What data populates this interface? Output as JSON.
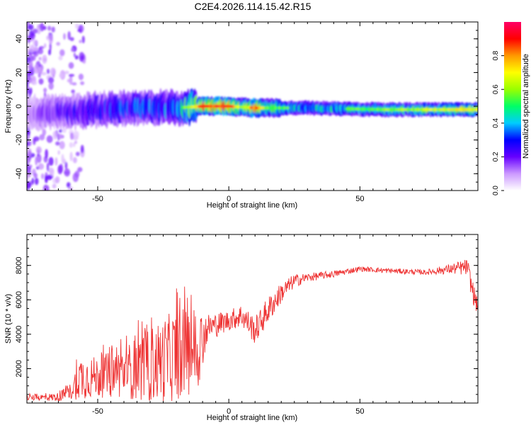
{
  "title": "C2E4.2026.114.15.42.R15",
  "chart_data": [
    {
      "type": "heatmap",
      "xlabel": "Height of straight line (km)",
      "ylabel": "Frequency (Hz)",
      "xlim": [
        -77,
        95
      ],
      "ylim": [
        -50,
        50
      ],
      "xticks": [
        -50,
        0,
        50
      ],
      "yticks": [
        -40,
        -20,
        0,
        20,
        40
      ],
      "grid": false,
      "colorbar": {
        "label": "Normalized spectral amplitude",
        "range": [
          0,
          1
        ],
        "ticks": [
          "0.0",
          "0.2",
          "0.4",
          "0.6",
          "0.8"
        ],
        "colors": [
          "#ffffff",
          "#cc99ff",
          "#6600ff",
          "#0000ff",
          "#00ccff",
          "#00ff66",
          "#99ff00",
          "#ffff00",
          "#ff9900",
          "#ff0000",
          "#ff0066"
        ]
      },
      "ridge": {
        "description_points": [
          {
            "x": -77,
            "y": -4
          },
          {
            "x": -60,
            "y": -3
          },
          {
            "x": -40,
            "y": -1
          },
          {
            "x": -20,
            "y": -1
          },
          {
            "x": -10,
            "y": 0
          },
          {
            "x": 0,
            "y": 0
          },
          {
            "x": 10,
            "y": -1
          },
          {
            "x": 30,
            "y": -1
          },
          {
            "x": 60,
            "y": -2
          },
          {
            "x": 95,
            "y": -2
          }
        ],
        "amplitude": [
          {
            "x": -77,
            "v": 0.15
          },
          {
            "x": -60,
            "v": 0.3
          },
          {
            "x": -40,
            "v": 0.4
          },
          {
            "x": -20,
            "v": 0.45
          },
          {
            "x": -10,
            "v": 0.9
          },
          {
            "x": 0,
            "v": 0.95
          },
          {
            "x": 5,
            "v": 0.6
          },
          {
            "x": 10,
            "v": 0.9
          },
          {
            "x": 15,
            "v": 0.6
          },
          {
            "x": 30,
            "v": 0.5
          },
          {
            "x": 60,
            "v": 0.6
          },
          {
            "x": 95,
            "v": 0.75
          }
        ]
      }
    },
    {
      "type": "line",
      "xlabel": "Height of straight line (km)",
      "ylabel": "SNR (10 * v/v)",
      "xlim": [
        -77,
        95
      ],
      "ylim": [
        0,
        9800
      ],
      "xticks": [
        -50,
        0,
        50
      ],
      "yticks": [
        2000,
        4000,
        6000,
        8000
      ],
      "color": "#ee3333",
      "grid": false,
      "envelope": [
        {
          "x": -77,
          "mean": 300,
          "amp": 150
        },
        {
          "x": -65,
          "mean": 350,
          "amp": 250
        },
        {
          "x": -60,
          "mean": 700,
          "amp": 500
        },
        {
          "x": -57,
          "mean": 1500,
          "amp": 1300
        },
        {
          "x": -50,
          "mean": 1500,
          "amp": 1200
        },
        {
          "x": -40,
          "mean": 1800,
          "amp": 1500
        },
        {
          "x": -30,
          "mean": 2200,
          "amp": 2200
        },
        {
          "x": -20,
          "mean": 2800,
          "amp": 2700
        },
        {
          "x": -12,
          "mean": 3200,
          "amp": 2500
        },
        {
          "x": -8,
          "mean": 4400,
          "amp": 800
        },
        {
          "x": 0,
          "mean": 4800,
          "amp": 600
        },
        {
          "x": 5,
          "mean": 5100,
          "amp": 700
        },
        {
          "x": 10,
          "mean": 4200,
          "amp": 800
        },
        {
          "x": 15,
          "mean": 5400,
          "amp": 800
        },
        {
          "x": 20,
          "mean": 6400,
          "amp": 600
        },
        {
          "x": 25,
          "mean": 7100,
          "amp": 400
        },
        {
          "x": 30,
          "mean": 7300,
          "amp": 250
        },
        {
          "x": 40,
          "mean": 7500,
          "amp": 200
        },
        {
          "x": 50,
          "mean": 7800,
          "amp": 150
        },
        {
          "x": 60,
          "mean": 7700,
          "amp": 150
        },
        {
          "x": 75,
          "mean": 7600,
          "amp": 150
        },
        {
          "x": 85,
          "mean": 7800,
          "amp": 300
        },
        {
          "x": 91,
          "mean": 7900,
          "amp": 500
        },
        {
          "x": 93,
          "mean": 6500,
          "amp": 700
        },
        {
          "x": 95,
          "mean": 5500,
          "amp": 400
        }
      ]
    }
  ]
}
